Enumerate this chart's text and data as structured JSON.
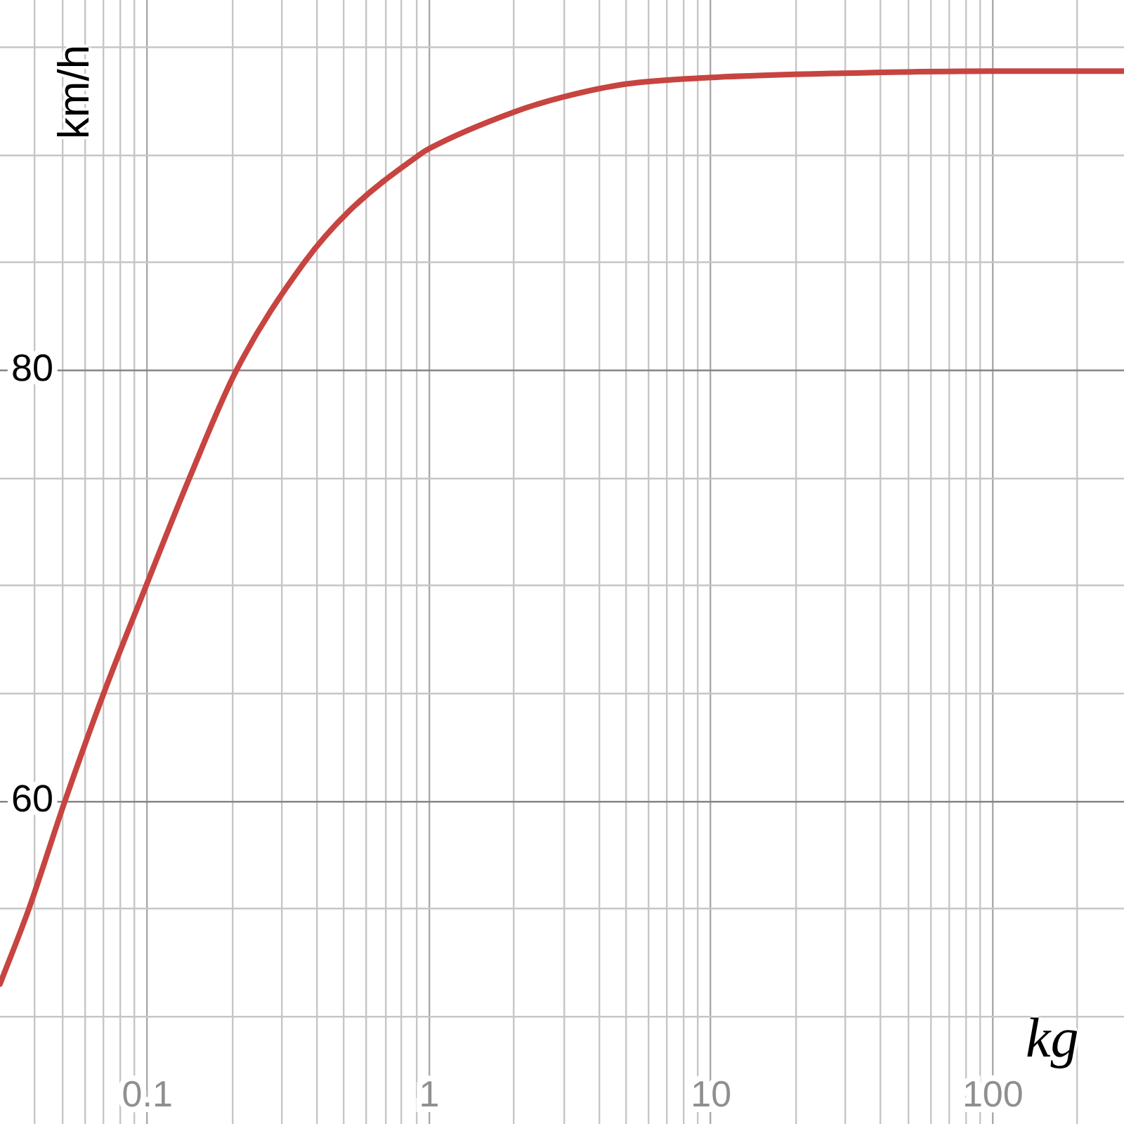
{
  "chart_data": {
    "type": "line",
    "xlabel": "kg",
    "ylabel": "km/h",
    "x": [
      0.03,
      0.038,
      0.051,
      0.07,
      0.099,
      0.141,
      0.207,
      0.36,
      0.52,
      0.92,
      1,
      2,
      3,
      5,
      10,
      29,
      100,
      292
    ],
    "series": [
      {
        "color": "#c74440",
        "values": [
          51.5,
          55.0,
          60.0,
          65.0,
          70.0,
          75.0,
          80.0,
          85.0,
          87.4,
          90.0,
          90.3,
          92.0,
          92.7,
          93.3,
          93.6,
          93.8,
          93.9,
          93.9
        ]
      }
    ],
    "log": "x",
    "xlim": [
      0.03,
      292
    ],
    "ylim": [
      45,
      97.2
    ],
    "xticks": [
      {
        "value": 0.04,
        "label": null
      },
      {
        "value": 0.05,
        "label": null
      },
      {
        "value": 0.06,
        "label": null
      },
      {
        "value": 0.07,
        "label": null
      },
      {
        "value": 0.08,
        "label": null
      },
      {
        "value": 0.09,
        "label": null
      },
      0.1,
      {
        "value": 0.2,
        "label": null
      },
      {
        "value": 0.3,
        "label": null
      },
      {
        "value": 0.4,
        "label": null
      },
      {
        "value": 0.5,
        "label": null
      },
      {
        "value": 0.6,
        "label": null
      },
      {
        "value": 0.7,
        "label": null
      },
      {
        "value": 0.8,
        "label": null
      },
      {
        "value": 0.9,
        "label": null
      },
      1,
      {
        "value": 2,
        "label": null
      },
      {
        "value": 3,
        "label": null
      },
      {
        "value": 4,
        "label": null
      },
      {
        "value": 5,
        "label": null
      },
      {
        "value": 6,
        "label": null
      },
      {
        "value": 7,
        "label": null
      },
      {
        "value": 8,
        "label": null
      },
      {
        "value": 9,
        "label": null
      },
      10,
      {
        "value": 20,
        "label": null
      },
      {
        "value": 30,
        "label": null
      },
      {
        "value": 40,
        "label": null
      },
      {
        "value": 50,
        "label": null
      },
      {
        "value": 60,
        "label": null
      },
      {
        "value": 70,
        "label": null
      },
      {
        "value": 80,
        "label": null
      },
      {
        "value": 90,
        "label": null
      },
      100,
      {
        "value": 200,
        "label": null
      }
    ],
    "yticks": [
      {
        "value": 50,
        "label": null
      },
      {
        "value": 55,
        "label": null
      },
      60,
      {
        "value": 65,
        "label": null
      },
      {
        "value": 70,
        "label": null
      },
      {
        "value": 75,
        "label": null
      },
      80,
      {
        "value": 85,
        "label": null
      },
      {
        "value": 90,
        "label": null
      },
      {
        "value": 95,
        "label": null
      }
    ],
    "grid": true,
    "marker": "none"
  }
}
